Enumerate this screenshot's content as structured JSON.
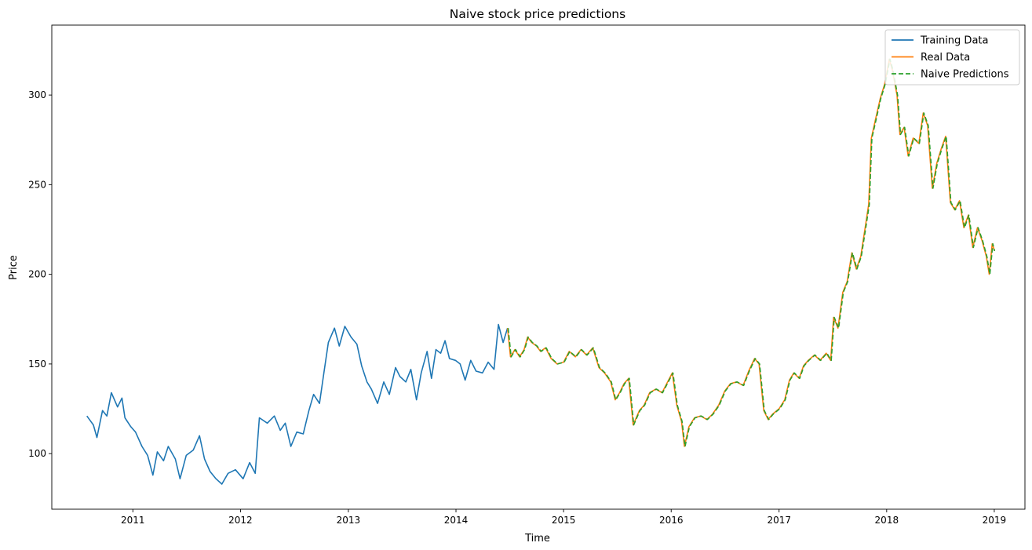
{
  "chart_data": {
    "type": "line",
    "title": "Naive stock price predictions",
    "xlabel": "Time",
    "ylabel": "Price",
    "xlim": [
      "2010-04-01",
      "2019-04-15"
    ],
    "ylim": [
      69,
      339
    ],
    "x_ticks": [
      "2011",
      "2012",
      "2013",
      "2014",
      "2015",
      "2016",
      "2017",
      "2018",
      "2019"
    ],
    "y_ticks": [
      "100",
      "150",
      "200",
      "250",
      "300"
    ],
    "grid": false,
    "legend_position": "top-right",
    "series": [
      {
        "name": "Training Data",
        "color": "#1f77b4",
        "style": "solid",
        "points": [
          [
            "2010-07-29",
            121
          ],
          [
            "2010-08-20",
            116
          ],
          [
            "2010-09-01",
            109
          ],
          [
            "2010-09-20",
            124
          ],
          [
            "2010-10-05",
            121
          ],
          [
            "2010-10-20",
            134
          ],
          [
            "2010-11-10",
            126
          ],
          [
            "2010-11-25",
            131
          ],
          [
            "2010-12-05",
            120
          ],
          [
            "2010-12-25",
            115
          ],
          [
            "2011-01-10",
            112
          ],
          [
            "2011-02-01",
            104
          ],
          [
            "2011-02-20",
            99
          ],
          [
            "2011-03-10",
            88
          ],
          [
            "2011-03-25",
            101
          ],
          [
            "2011-04-15",
            96
          ],
          [
            "2011-05-01",
            104
          ],
          [
            "2011-05-25",
            97
          ],
          [
            "2011-06-10",
            86
          ],
          [
            "2011-07-01",
            99
          ],
          [
            "2011-07-25",
            102
          ],
          [
            "2011-08-15",
            110
          ],
          [
            "2011-09-01",
            97
          ],
          [
            "2011-09-20",
            90
          ],
          [
            "2011-10-10",
            86
          ],
          [
            "2011-10-30",
            83
          ],
          [
            "2011-11-20",
            89
          ],
          [
            "2011-12-15",
            91
          ],
          [
            "2012-01-10",
            86
          ],
          [
            "2012-02-01",
            95
          ],
          [
            "2012-02-20",
            89
          ],
          [
            "2012-03-05",
            120
          ],
          [
            "2012-04-01",
            117
          ],
          [
            "2012-04-25",
            121
          ],
          [
            "2012-05-15",
            113
          ],
          [
            "2012-06-01",
            117
          ],
          [
            "2012-06-20",
            104
          ],
          [
            "2012-07-10",
            112
          ],
          [
            "2012-08-01",
            111
          ],
          [
            "2012-08-20",
            124
          ],
          [
            "2012-09-05",
            133
          ],
          [
            "2012-09-25",
            128
          ],
          [
            "2012-10-10",
            145
          ],
          [
            "2012-10-25",
            162
          ],
          [
            "2012-11-15",
            170
          ],
          [
            "2012-12-01",
            160
          ],
          [
            "2012-12-20",
            171
          ],
          [
            "2013-01-10",
            165
          ],
          [
            "2013-01-30",
            161
          ],
          [
            "2013-02-15",
            149
          ],
          [
            "2013-03-05",
            140
          ],
          [
            "2013-03-20",
            136
          ],
          [
            "2013-04-10",
            128
          ],
          [
            "2013-05-01",
            140
          ],
          [
            "2013-05-20",
            133
          ],
          [
            "2013-06-10",
            148
          ],
          [
            "2013-06-25",
            143
          ],
          [
            "2013-07-15",
            140
          ],
          [
            "2013-08-01",
            147
          ],
          [
            "2013-08-20",
            130
          ],
          [
            "2013-09-05",
            145
          ],
          [
            "2013-09-25",
            157
          ],
          [
            "2013-10-10",
            142
          ],
          [
            "2013-10-25",
            158
          ],
          [
            "2013-11-10",
            156
          ],
          [
            "2013-11-25",
            163
          ],
          [
            "2013-12-10",
            153
          ],
          [
            "2013-12-30",
            152
          ],
          [
            "2014-01-15",
            150
          ],
          [
            "2014-02-01",
            141
          ],
          [
            "2014-02-20",
            152
          ],
          [
            "2014-03-10",
            146
          ],
          [
            "2014-04-01",
            145
          ],
          [
            "2014-04-20",
            151
          ],
          [
            "2014-05-10",
            147
          ],
          [
            "2014-05-25",
            172
          ],
          [
            "2014-06-10",
            162
          ],
          [
            "2014-06-25",
            170
          ]
        ]
      },
      {
        "name": "Real Data",
        "color": "#ff7f0e",
        "style": "solid",
        "points": [
          [
            "2014-06-25",
            170
          ],
          [
            "2014-07-05",
            154
          ],
          [
            "2014-07-20",
            158
          ],
          [
            "2014-08-05",
            154
          ],
          [
            "2014-08-20",
            158
          ],
          [
            "2014-09-01",
            165
          ],
          [
            "2014-09-15",
            162
          ],
          [
            "2014-10-01",
            160
          ],
          [
            "2014-10-15",
            157
          ],
          [
            "2014-11-01",
            159
          ],
          [
            "2014-11-20",
            153
          ],
          [
            "2014-12-10",
            150
          ],
          [
            "2015-01-01",
            151
          ],
          [
            "2015-01-20",
            157
          ],
          [
            "2015-02-10",
            154
          ],
          [
            "2015-03-01",
            158
          ],
          [
            "2015-03-20",
            155
          ],
          [
            "2015-04-10",
            159
          ],
          [
            "2015-05-01",
            148
          ],
          [
            "2015-05-20",
            145
          ],
          [
            "2015-06-10",
            140
          ],
          [
            "2015-06-25",
            130
          ],
          [
            "2015-07-10",
            134
          ],
          [
            "2015-07-25",
            139
          ],
          [
            "2015-08-10",
            142
          ],
          [
            "2015-08-25",
            116
          ],
          [
            "2015-09-15",
            124
          ],
          [
            "2015-10-01",
            127
          ],
          [
            "2015-10-20",
            134
          ],
          [
            "2015-11-10",
            136
          ],
          [
            "2015-12-01",
            134
          ],
          [
            "2015-12-20",
            140
          ],
          [
            "2016-01-05",
            145
          ],
          [
            "2016-01-20",
            127
          ],
          [
            "2016-02-05",
            118
          ],
          [
            "2016-02-15",
            104
          ],
          [
            "2016-03-01",
            115
          ],
          [
            "2016-03-20",
            120
          ],
          [
            "2016-04-10",
            121
          ],
          [
            "2016-05-01",
            119
          ],
          [
            "2016-05-20",
            122
          ],
          [
            "2016-06-10",
            127
          ],
          [
            "2016-07-01",
            135
          ],
          [
            "2016-07-20",
            139
          ],
          [
            "2016-08-10",
            140
          ],
          [
            "2016-09-01",
            138
          ],
          [
            "2016-09-20",
            146
          ],
          [
            "2016-10-10",
            153
          ],
          [
            "2016-10-25",
            150
          ],
          [
            "2016-11-10",
            124
          ],
          [
            "2016-11-25",
            119
          ],
          [
            "2016-12-10",
            122
          ],
          [
            "2017-01-01",
            125
          ],
          [
            "2017-01-20",
            130
          ],
          [
            "2017-02-05",
            141
          ],
          [
            "2017-02-20",
            145
          ],
          [
            "2017-03-10",
            142
          ],
          [
            "2017-03-25",
            149
          ],
          [
            "2017-04-10",
            152
          ],
          [
            "2017-05-01",
            155
          ],
          [
            "2017-05-20",
            152
          ],
          [
            "2017-06-10",
            156
          ],
          [
            "2017-06-25",
            152
          ],
          [
            "2017-07-05",
            176
          ],
          [
            "2017-07-20",
            170
          ],
          [
            "2017-08-05",
            190
          ],
          [
            "2017-08-20",
            196
          ],
          [
            "2017-09-05",
            212
          ],
          [
            "2017-09-20",
            203
          ],
          [
            "2017-10-05",
            210
          ],
          [
            "2017-10-20",
            226
          ],
          [
            "2017-11-01",
            239
          ],
          [
            "2017-11-10",
            276
          ],
          [
            "2017-11-25",
            287
          ],
          [
            "2017-12-10",
            298
          ],
          [
            "2017-12-25",
            306
          ],
          [
            "2018-01-10",
            320
          ],
          [
            "2018-01-20",
            314
          ],
          [
            "2018-02-05",
            300
          ],
          [
            "2018-02-15",
            278
          ],
          [
            "2018-03-01",
            282
          ],
          [
            "2018-03-15",
            266
          ],
          [
            "2018-04-01",
            276
          ],
          [
            "2018-04-20",
            273
          ],
          [
            "2018-05-05",
            290
          ],
          [
            "2018-05-20",
            283
          ],
          [
            "2018-06-05",
            248
          ],
          [
            "2018-06-20",
            262
          ],
          [
            "2018-07-05",
            270
          ],
          [
            "2018-07-20",
            277
          ],
          [
            "2018-08-05",
            240
          ],
          [
            "2018-08-20",
            236
          ],
          [
            "2018-09-05",
            241
          ],
          [
            "2018-09-20",
            226
          ],
          [
            "2018-10-05",
            233
          ],
          [
            "2018-10-20",
            215
          ],
          [
            "2018-11-05",
            226
          ],
          [
            "2018-11-20",
            219
          ],
          [
            "2018-12-05",
            210
          ],
          [
            "2018-12-15",
            200
          ],
          [
            "2018-12-25",
            217
          ],
          [
            "2019-01-02",
            213
          ]
        ]
      },
      {
        "name": "Naive Predictions",
        "color": "#2ca02c",
        "style": "dashed",
        "points": [
          [
            "2014-06-27",
            170
          ],
          [
            "2014-07-07",
            154
          ],
          [
            "2014-07-22",
            158
          ],
          [
            "2014-08-07",
            154
          ],
          [
            "2014-08-22",
            158
          ],
          [
            "2014-09-03",
            165
          ],
          [
            "2014-09-17",
            162
          ],
          [
            "2014-10-03",
            160
          ],
          [
            "2014-10-17",
            157
          ],
          [
            "2014-11-03",
            159
          ],
          [
            "2014-11-22",
            153
          ],
          [
            "2014-12-12",
            150
          ],
          [
            "2015-01-03",
            151
          ],
          [
            "2015-01-22",
            157
          ],
          [
            "2015-02-12",
            154
          ],
          [
            "2015-03-03",
            158
          ],
          [
            "2015-03-22",
            155
          ],
          [
            "2015-04-12",
            159
          ],
          [
            "2015-05-03",
            148
          ],
          [
            "2015-05-22",
            145
          ],
          [
            "2015-06-12",
            140
          ],
          [
            "2015-06-27",
            130
          ],
          [
            "2015-07-12",
            134
          ],
          [
            "2015-07-27",
            139
          ],
          [
            "2015-08-12",
            142
          ],
          [
            "2015-08-27",
            116
          ],
          [
            "2015-09-17",
            124
          ],
          [
            "2015-10-03",
            127
          ],
          [
            "2015-10-22",
            134
          ],
          [
            "2015-11-12",
            136
          ],
          [
            "2015-12-03",
            134
          ],
          [
            "2015-12-22",
            140
          ],
          [
            "2016-01-07",
            145
          ],
          [
            "2016-01-22",
            127
          ],
          [
            "2016-02-07",
            118
          ],
          [
            "2016-02-17",
            104
          ],
          [
            "2016-03-03",
            115
          ],
          [
            "2016-03-22",
            120
          ],
          [
            "2016-04-12",
            121
          ],
          [
            "2016-05-03",
            119
          ],
          [
            "2016-05-22",
            122
          ],
          [
            "2016-06-12",
            127
          ],
          [
            "2016-07-03",
            135
          ],
          [
            "2016-07-22",
            139
          ],
          [
            "2016-08-12",
            140
          ],
          [
            "2016-09-03",
            138
          ],
          [
            "2016-09-22",
            146
          ],
          [
            "2016-10-12",
            153
          ],
          [
            "2016-10-27",
            150
          ],
          [
            "2016-11-12",
            124
          ],
          [
            "2016-11-27",
            119
          ],
          [
            "2016-12-12",
            122
          ],
          [
            "2017-01-03",
            125
          ],
          [
            "2017-01-22",
            130
          ],
          [
            "2017-02-07",
            141
          ],
          [
            "2017-02-22",
            145
          ],
          [
            "2017-03-12",
            142
          ],
          [
            "2017-03-27",
            149
          ],
          [
            "2017-04-12",
            152
          ],
          [
            "2017-05-03",
            155
          ],
          [
            "2017-05-22",
            152
          ],
          [
            "2017-06-12",
            156
          ],
          [
            "2017-06-27",
            152
          ],
          [
            "2017-07-07",
            176
          ],
          [
            "2017-07-22",
            170
          ],
          [
            "2017-08-07",
            190
          ],
          [
            "2017-08-22",
            196
          ],
          [
            "2017-09-07",
            212
          ],
          [
            "2017-09-22",
            203
          ],
          [
            "2017-10-07",
            210
          ],
          [
            "2017-10-22",
            226
          ],
          [
            "2017-11-03",
            239
          ],
          [
            "2017-11-12",
            276
          ],
          [
            "2017-11-27",
            287
          ],
          [
            "2017-12-12",
            298
          ],
          [
            "2017-12-27",
            306
          ],
          [
            "2018-01-12",
            320
          ],
          [
            "2018-01-22",
            314
          ],
          [
            "2018-02-07",
            300
          ],
          [
            "2018-02-17",
            278
          ],
          [
            "2018-03-03",
            282
          ],
          [
            "2018-03-17",
            266
          ],
          [
            "2018-04-03",
            276
          ],
          [
            "2018-04-22",
            273
          ],
          [
            "2018-05-07",
            290
          ],
          [
            "2018-05-22",
            283
          ],
          [
            "2018-06-07",
            248
          ],
          [
            "2018-06-22",
            262
          ],
          [
            "2018-07-07",
            270
          ],
          [
            "2018-07-22",
            277
          ],
          [
            "2018-08-07",
            240
          ],
          [
            "2018-08-22",
            236
          ],
          [
            "2018-09-07",
            241
          ],
          [
            "2018-09-22",
            226
          ],
          [
            "2018-10-07",
            233
          ],
          [
            "2018-10-22",
            215
          ],
          [
            "2018-11-07",
            226
          ],
          [
            "2018-11-22",
            219
          ],
          [
            "2018-12-07",
            210
          ],
          [
            "2018-12-17",
            200
          ],
          [
            "2018-12-27",
            217
          ],
          [
            "2019-01-02",
            213
          ]
        ]
      }
    ]
  }
}
